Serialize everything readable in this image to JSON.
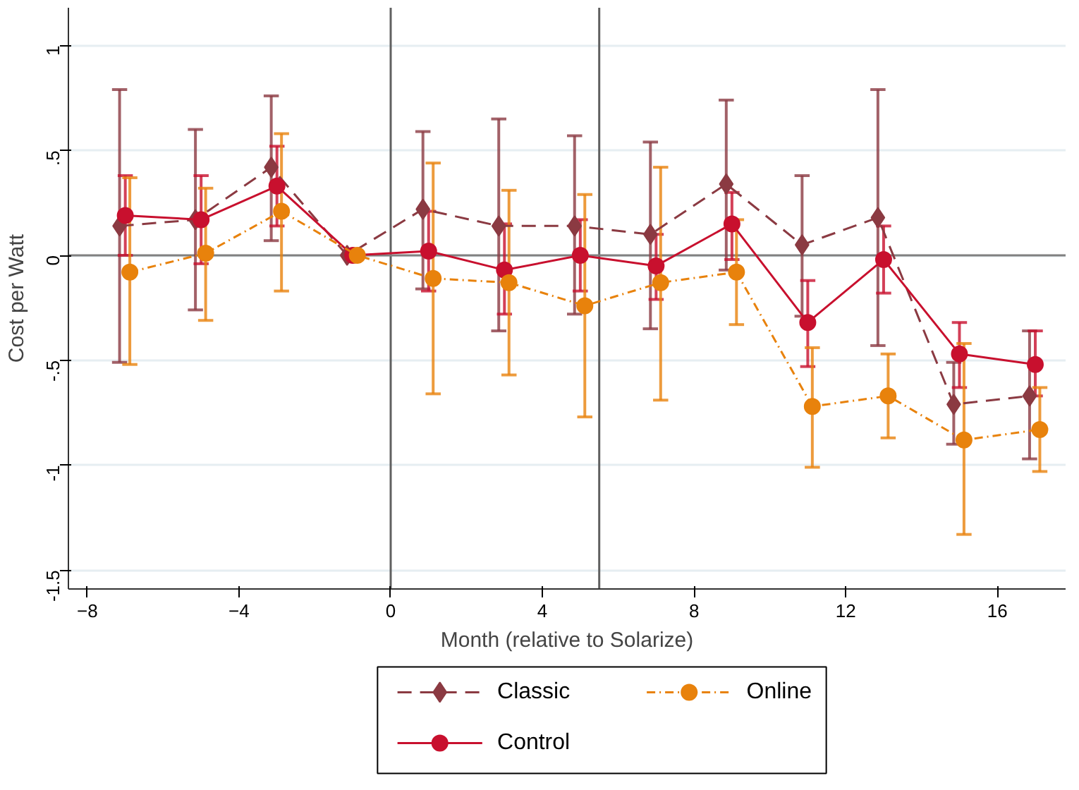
{
  "chart_data": {
    "type": "line",
    "xlabel": "Month (relative to Solarize)",
    "ylabel": "Cost per Watt",
    "xlim": [
      -8.5,
      17.8
    ],
    "xticks": [
      -8,
      -4,
      0,
      4,
      8,
      12,
      16
    ],
    "ylim": [
      -1.59,
      1.18
    ],
    "yticks": [
      {
        "value": 1,
        "label": "1"
      },
      {
        "value": 0.5,
        "label": ".5"
      },
      {
        "value": 0,
        "label": "0"
      },
      {
        "value": -0.5,
        "label": "-.5"
      },
      {
        "value": -1,
        "label": "-1"
      },
      {
        "value": -1.5,
        "label": "-1.5"
      }
    ],
    "grid": "y",
    "legend": "bottom",
    "ref_lines": [
      {
        "axis": "x",
        "value": 0,
        "color": "#606060"
      },
      {
        "axis": "x",
        "value": 5.5,
        "color": "#606060"
      },
      {
        "axis": "y",
        "value": 0,
        "color": "#808080"
      }
    ],
    "series": [
      {
        "name": "Classic",
        "color": "#8b3a42",
        "marker": "diamond",
        "line_style": "dashed",
        "x": [
          -7.15,
          -5.15,
          -3.15,
          -1.15,
          0.85,
          2.85,
          4.85,
          6.85,
          8.85,
          10.85,
          12.85,
          14.85,
          16.85
        ],
        "values": [
          0.14,
          0.17,
          0.42,
          0,
          0.22,
          0.14,
          0.14,
          0.1,
          0.34,
          0.05,
          0.18,
          -0.71,
          -0.67
        ],
        "errors": [
          [
            -0.51,
            0.79
          ],
          [
            -0.26,
            0.6
          ],
          [
            0.07,
            0.76
          ],
          null,
          [
            -0.16,
            0.59
          ],
          [
            -0.36,
            0.65
          ],
          [
            -0.28,
            0.57
          ],
          [
            -0.35,
            0.54
          ],
          [
            -0.07,
            0.74
          ],
          [
            -0.29,
            0.38
          ],
          [
            -0.43,
            0.79
          ],
          [
            -0.9,
            -0.51
          ],
          [
            -0.97,
            -0.36
          ]
        ]
      },
      {
        "name": "Control",
        "color": "#c8102e",
        "marker": "circle",
        "line_style": "solid",
        "x": [
          -7,
          -5,
          -3,
          -1,
          1,
          3,
          5,
          7,
          9,
          11,
          13,
          15,
          17
        ],
        "values": [
          0.19,
          0.17,
          0.33,
          0,
          0.02,
          -0.07,
          0,
          -0.05,
          0.15,
          -0.32,
          -0.02,
          -0.47,
          -0.52
        ],
        "errors": [
          [
            0,
            0.38
          ],
          [
            -0.04,
            0.38
          ],
          [
            0.14,
            0.52
          ],
          null,
          [
            -0.17,
            0.21
          ],
          [
            -0.28,
            0.15
          ],
          [
            -0.17,
            0.17
          ],
          [
            -0.21,
            0.1
          ],
          [
            -0.02,
            0.3
          ],
          [
            -0.53,
            -0.12
          ],
          [
            -0.18,
            0.14
          ],
          [
            -0.63,
            -0.32
          ],
          [
            -0.67,
            -0.36
          ]
        ]
      },
      {
        "name": "Online",
        "color": "#e8820c",
        "marker": "circle",
        "line_style": "dashdot",
        "x": [
          -6.88,
          -4.88,
          -2.88,
          -0.88,
          1.12,
          3.12,
          5.12,
          7.12,
          9.12,
          11.12,
          13.12,
          15.12,
          17.12
        ],
        "values": [
          -0.08,
          0.01,
          0.21,
          0,
          -0.11,
          -0.13,
          -0.24,
          -0.13,
          -0.08,
          -0.72,
          -0.67,
          -0.88,
          -0.83
        ],
        "errors": [
          [
            -0.52,
            0.37
          ],
          [
            -0.31,
            0.32
          ],
          [
            -0.17,
            0.58
          ],
          null,
          [
            -0.66,
            0.44
          ],
          [
            -0.57,
            0.31
          ],
          [
            -0.77,
            0.29
          ],
          [
            -0.69,
            0.42
          ],
          [
            -0.33,
            0.17
          ],
          [
            -1.01,
            -0.44
          ],
          [
            -0.87,
            -0.47
          ],
          [
            -1.33,
            -0.42
          ],
          [
            -1.03,
            -0.63
          ]
        ]
      }
    ]
  }
}
